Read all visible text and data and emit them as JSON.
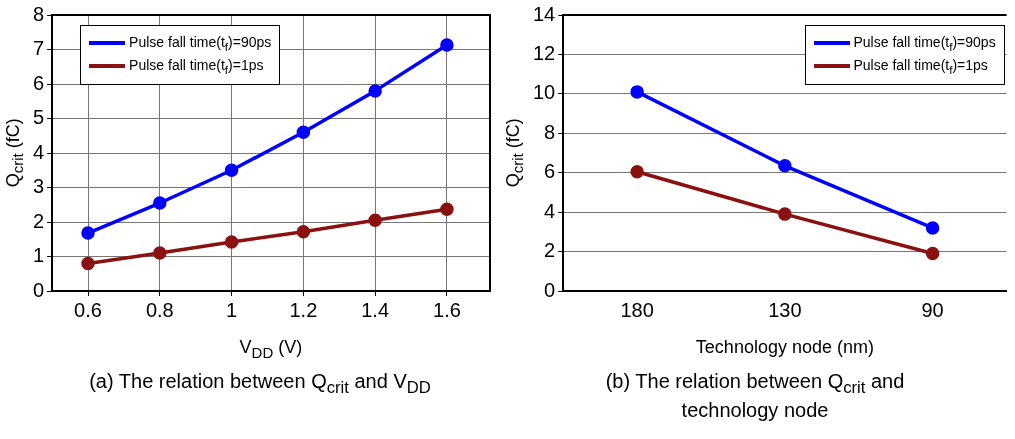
{
  "chart_data": [
    {
      "type": "line",
      "xlabel": "V$_{DD}$ (V)",
      "ylabel": "Q$_{crit}$ (fC)",
      "x": [
        0.6,
        0.8,
        1,
        1.2,
        1.4,
        1.6
      ],
      "xlim": [
        0.5,
        1.72
      ],
      "xticks": [
        0.6,
        0.8,
        1,
        1.2,
        1.4,
        1.6
      ],
      "ylim": [
        0,
        8
      ],
      "yticks": [
        0,
        1,
        2,
        3,
        4,
        5,
        6,
        7,
        8
      ],
      "grid": true,
      "legend": "top left",
      "marker": "circle",
      "line_style": "solid",
      "series": [
        {
          "name": "Pulse fall time(t$_{f}$)=90ps",
          "color": "#0000ff",
          "values": [
            1.68,
            2.55,
            3.5,
            4.6,
            5.8,
            7.13
          ]
        },
        {
          "name": "Pulse fall time(t$_{f}$)=1ps",
          "color": "#8b1010",
          "values": [
            0.8,
            1.1,
            1.42,
            1.72,
            2.05,
            2.37
          ]
        }
      ],
      "annotations": [
        "(a) The relation between Q$_{crit}$ and V$_{DD}$"
      ]
    },
    {
      "type": "line",
      "xlabel": "Technology node  (nm)",
      "ylabel": "Q$_{crit}$ (fC)",
      "categories": [
        "180",
        "130",
        "90"
      ],
      "ylim": [
        0,
        14
      ],
      "yticks": [
        0,
        2,
        4,
        6,
        8,
        10,
        12,
        14
      ],
      "grid": "y",
      "legend": "top right",
      "marker": "circle",
      "line_style": "solid",
      "series": [
        {
          "name": "Pulse fall time(t$_{f}$)=90ps",
          "color": "#0000ff",
          "values": [
            10.1,
            6.35,
            3.2
          ]
        },
        {
          "name": "Pulse fall time(t$_{f}$)=1ps",
          "color": "#8b1010",
          "values": [
            6.05,
            3.9,
            1.9
          ]
        }
      ],
      "annotations": [
        "(b) The relation between Q$_{crit}$ and technology node"
      ]
    }
  ]
}
